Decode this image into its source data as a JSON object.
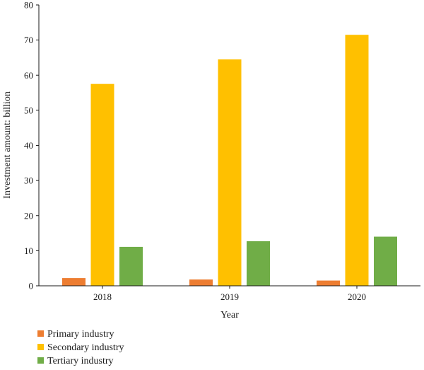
{
  "chart_data": {
    "type": "bar",
    "title": "",
    "xlabel": "Year",
    "ylabel": "Investment amount: billion",
    "categories": [
      "2018",
      "2019",
      "2020"
    ],
    "ylim": [
      0,
      80
    ],
    "yticks": [
      "0",
      "10",
      "20",
      "30",
      "40",
      "50",
      "60",
      "70",
      "80"
    ],
    "grid": false,
    "legend_position": "bottom-left",
    "series": [
      {
        "name": "Primary industry",
        "color": "#ED7D31",
        "values": [
          2.2,
          1.8,
          1.5
        ]
      },
      {
        "name": "Secondary industry",
        "color": "#FFC000",
        "values": [
          57.5,
          64.5,
          71.5
        ]
      },
      {
        "name": "Tertiary industry",
        "color": "#70AD47",
        "values": [
          11.1,
          12.7,
          14.0
        ]
      }
    ]
  }
}
